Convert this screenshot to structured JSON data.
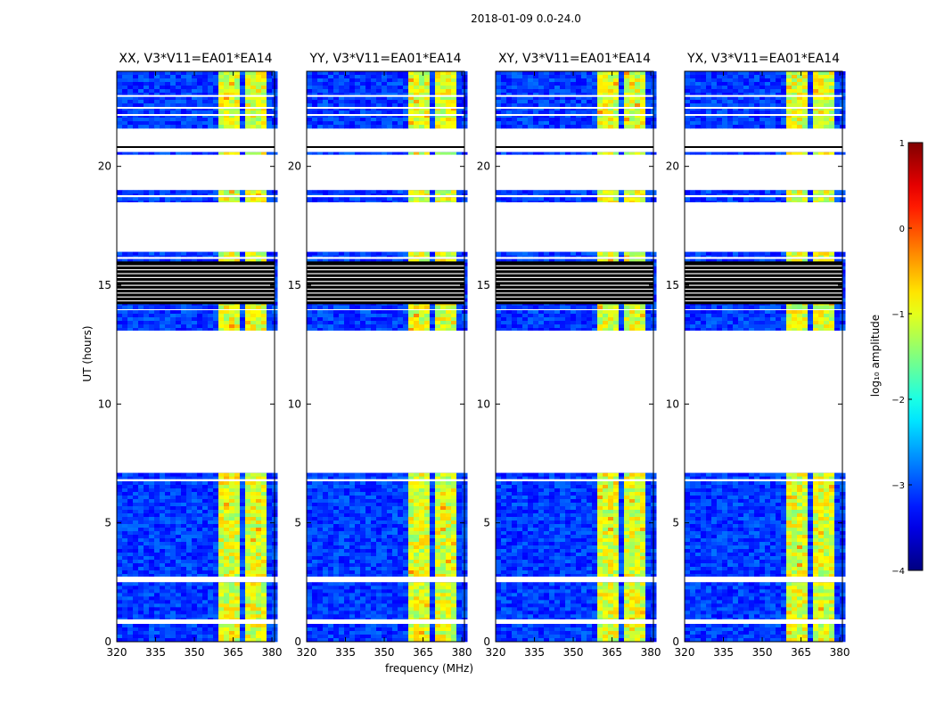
{
  "chart_data": {
    "type": "heatmap",
    "title": "2018-01-09 0.0-24.0",
    "xlabel": "frequency (MHz)",
    "ylabel": "UT (hours)",
    "xlim": [
      320,
      381
    ],
    "ylim": [
      0,
      24
    ],
    "xticks": [
      320,
      335,
      350,
      365,
      380
    ],
    "yticks": [
      0,
      5,
      10,
      15,
      20
    ],
    "panels": [
      {
        "title": "XX, V3*V11=EA01*EA14",
        "pol": "XX"
      },
      {
        "title": "YY, V3*V11=EA01*EA14",
        "pol": "YY"
      },
      {
        "title": "XY, V3*V11=EA01*EA14",
        "pol": "XY"
      },
      {
        "title": "YX, V3*V11=EA01*EA14",
        "pol": "YX"
      }
    ],
    "bright_bands_mhz": [
      [
        359,
        363
      ],
      [
        364,
        368
      ],
      [
        369,
        373
      ],
      [
        374,
        378
      ]
    ],
    "data_segments_hours": [
      [
        0,
        0.75
      ],
      [
        0.95,
        2.5
      ],
      [
        2.75,
        6.75
      ],
      [
        6.85,
        7.1
      ],
      [
        13.1,
        13.95
      ],
      [
        14.0,
        16.1
      ],
      [
        16.2,
        16.4
      ],
      [
        18.5,
        18.7
      ],
      [
        18.8,
        19.0
      ],
      [
        20.5,
        20.6
      ],
      [
        21.6,
        24.0
      ]
    ],
    "flagged_black_hours": [
      [
        14.2,
        16.0
      ]
    ],
    "colorbar": {
      "label": "log₁₀ amplitude",
      "range": [
        -4,
        1
      ],
      "ticks": [
        1,
        0,
        -1,
        -2,
        -3,
        -4
      ],
      "tick_labels": [
        "1",
        "0",
        "−1",
        "−2",
        "−3",
        "−4"
      ],
      "colormap": "jet"
    }
  }
}
